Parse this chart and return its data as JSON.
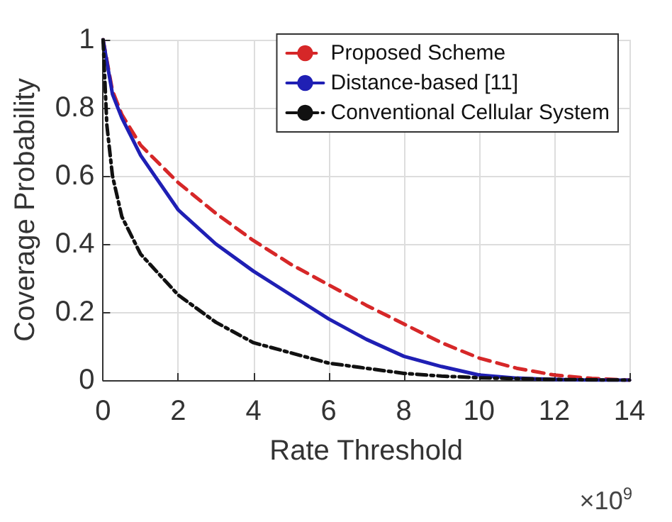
{
  "chart_data": {
    "type": "line",
    "xlabel": "Rate Threshold",
    "ylabel": "Coverage Probability",
    "annotations": [
      "×10$^{9}$"
    ],
    "xlim": [
      0,
      14
    ],
    "xticks": [
      0,
      2,
      4,
      6,
      8,
      10,
      12,
      14
    ],
    "ylim": [
      0,
      1
    ],
    "yticks": [
      0,
      0.2,
      0.4,
      0.6,
      0.8,
      1
    ],
    "grid": true,
    "legend": "top right",
    "marker": "none",
    "series": [
      {
        "name": "Proposed Scheme",
        "color": "#d62728",
        "line_style": "dashed",
        "x": [
          0,
          0.25,
          0.5,
          1,
          2,
          3,
          4,
          5,
          6,
          7,
          8,
          9,
          10,
          11,
          12,
          13,
          14
        ],
        "values": [
          1,
          0.85,
          0.78,
          0.69,
          0.58,
          0.49,
          0.41,
          0.34,
          0.28,
          0.22,
          0.165,
          0.11,
          0.065,
          0.035,
          0.015,
          0.005,
          0
        ]
      },
      {
        "name": "Distance-based [11]",
        "color": "#1f1fb4",
        "line_style": "solid",
        "x": [
          0,
          0.25,
          0.5,
          1,
          2,
          3,
          4,
          5,
          6,
          7,
          8,
          9,
          10,
          11,
          12,
          13,
          14
        ],
        "values": [
          1,
          0.84,
          0.77,
          0.66,
          0.5,
          0.4,
          0.32,
          0.25,
          0.18,
          0.12,
          0.07,
          0.04,
          0.015,
          0.006,
          0.002,
          0,
          0
        ]
      },
      {
        "name": "Conventional Cellular System",
        "color": "#111111",
        "line_style": "dotted",
        "x": [
          0,
          0.1,
          0.25,
          0.5,
          1,
          2,
          3,
          4,
          5,
          6,
          7,
          8,
          9,
          10,
          12,
          14
        ],
        "values": [
          1,
          0.75,
          0.6,
          0.48,
          0.37,
          0.25,
          0.17,
          0.11,
          0.08,
          0.05,
          0.035,
          0.02,
          0.012,
          0.007,
          0.002,
          0
        ]
      }
    ]
  }
}
